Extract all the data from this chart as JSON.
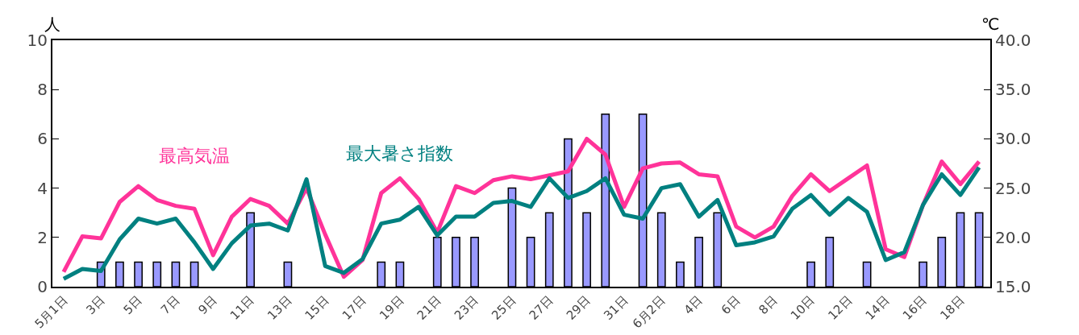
{
  "chart_data": {
    "type": "bar",
    "ylabel": "人",
    "y2label": "℃",
    "categories": [
      "5月1日",
      null,
      "3日",
      null,
      "5日",
      null,
      "7日",
      null,
      "9日",
      null,
      "11日",
      null,
      "13日",
      null,
      "15日",
      null,
      "17日",
      null,
      "19日",
      null,
      "21日",
      null,
      "23日",
      null,
      "25日",
      null,
      "27日",
      null,
      "29日",
      null,
      "31日",
      null,
      "6月2日",
      null,
      "4日",
      null,
      "6日",
      null,
      "8日",
      null,
      "10日",
      null,
      "12日",
      null,
      "14日",
      null,
      "16日",
      null,
      "18日",
      null
    ],
    "series": [
      {
        "color": "#9999ff",
        "values": [
          0,
          0,
          1,
          1,
          1,
          1,
          1,
          1,
          0,
          0,
          3,
          0,
          1,
          0,
          0,
          0,
          0,
          1,
          1,
          0,
          2,
          2,
          2,
          0,
          4,
          2,
          3,
          6,
          3,
          7,
          0,
          7,
          3,
          1,
          2,
          3,
          0,
          0,
          0,
          0,
          1,
          2,
          0,
          1,
          0,
          0,
          1,
          2,
          3,
          3
        ]
      },
      {
        "type": "line",
        "axis": "y2",
        "name": "最高気温",
        "color": "#ff3399",
        "values": [
          16.5,
          20.1,
          19.9,
          23.6,
          25.2,
          23.8,
          23.2,
          22.9,
          18.2,
          22.1,
          23.9,
          23.2,
          21.4,
          25.0,
          20.3,
          16.0,
          17.7,
          24.5,
          26.0,
          23.9,
          20.5,
          25.2,
          24.5,
          25.8,
          26.2,
          25.9,
          26.3,
          26.7,
          30.0,
          28.4,
          23.1,
          27.0,
          27.5,
          27.6,
          26.4,
          26.2,
          21.1,
          20.0,
          21.1,
          24.2,
          26.4,
          24.7,
          26.0,
          27.3,
          18.8,
          18.0,
          23.3,
          27.7,
          25.4,
          27.7
        ]
      },
      {
        "type": "line",
        "axis": "y2",
        "name": "最大暑さ指数",
        "color": "#008080",
        "values": [
          15.8,
          16.8,
          16.6,
          19.8,
          21.9,
          21.4,
          21.9,
          19.5,
          16.8,
          19.4,
          21.2,
          21.4,
          20.7,
          25.9,
          17.1,
          16.4,
          17.8,
          21.4,
          21.8,
          23.1,
          20.2,
          22.1,
          22.1,
          23.5,
          23.7,
          23.1,
          26.0,
          24.0,
          24.7,
          26.0,
          22.3,
          21.9,
          25.0,
          25.4,
          22.1,
          23.8,
          19.2,
          19.5,
          20.1,
          22.9,
          24.3,
          22.3,
          24.0,
          22.6,
          17.7,
          18.5,
          23.3,
          26.4,
          24.3,
          27.1
        ]
      }
    ],
    "ylim": [
      0,
      10
    ],
    "yticks": [
      0,
      2,
      4,
      6,
      8,
      10
    ],
    "y2lim": [
      15,
      40
    ],
    "y2ticks": [
      {
        "value": 15,
        "label": "15.0"
      },
      {
        "value": 20,
        "label": "20.0"
      },
      {
        "value": 25,
        "label": "25.0"
      },
      {
        "value": 30,
        "label": "30.0"
      },
      {
        "value": 35,
        "label": "35.0"
      },
      {
        "value": 40,
        "label": "40.0"
      }
    ],
    "grid": false,
    "legend": false,
    "marker": "none"
  }
}
